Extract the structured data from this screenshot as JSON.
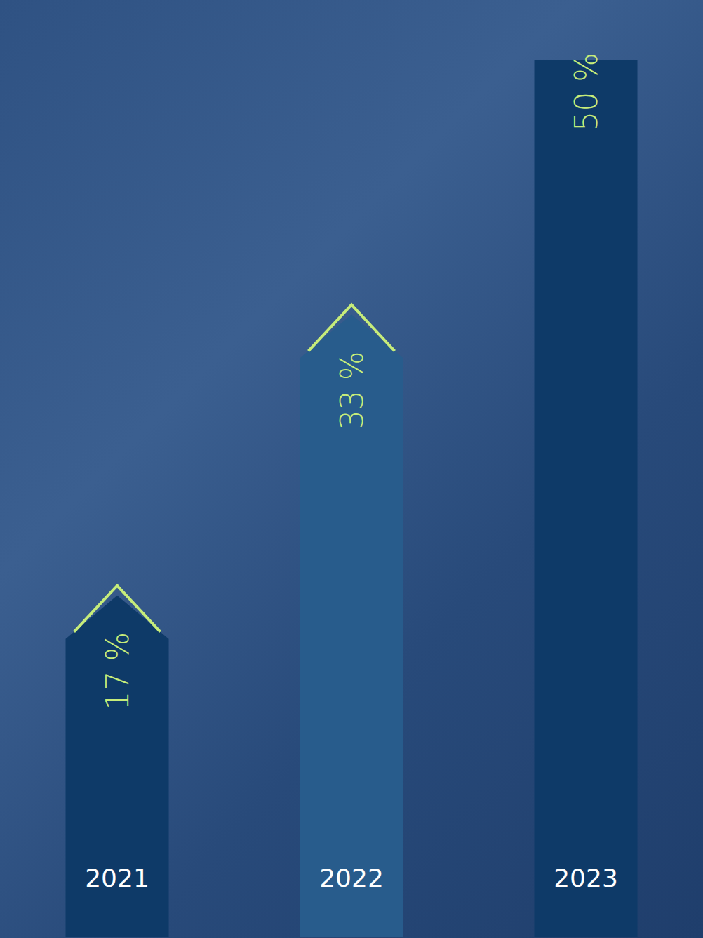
{
  "chart_data": {
    "type": "bar",
    "categories": [
      "2021",
      "2022",
      "2023"
    ],
    "values": [
      17,
      33,
      50
    ],
    "value_labels": [
      "17 %",
      "33 %",
      "50 %"
    ],
    "colors": [
      "#0e3a68",
      "#285c8c",
      "#0e3a68"
    ],
    "ylim": [
      0,
      50
    ],
    "data_labels": true,
    "tick_labels": "x"
  }
}
